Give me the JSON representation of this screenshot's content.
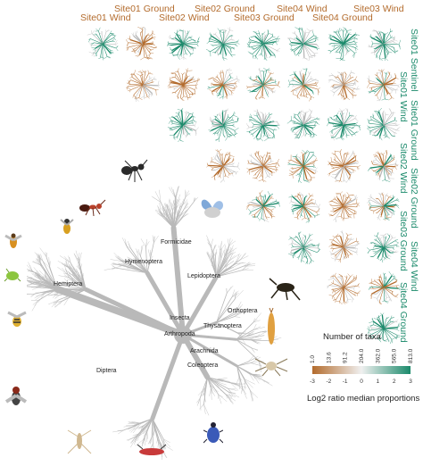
{
  "matrix": {
    "columns": [
      {
        "label": "Site01 Wind",
        "color": "#b36b2c"
      },
      {
        "label": "Site01 Ground",
        "color": "#b36b2c"
      },
      {
        "label": "Site02 Wind",
        "color": "#b36b2c"
      },
      {
        "label": "Site02 Ground",
        "color": "#b36b2c"
      },
      {
        "label": "Site03 Ground",
        "color": "#b36b2c"
      },
      {
        "label": "Site04 Wind",
        "color": "#b36b2c"
      },
      {
        "label": "Site04 Ground",
        "color": "#b36b2c"
      },
      {
        "label": "Site03 Wind",
        "color": "#b36b2c"
      }
    ],
    "rows": [
      {
        "label": "Site01 Sentinel"
      },
      {
        "label": "Site01 Wind"
      },
      {
        "label": "Site01 Ground"
      },
      {
        "label": "Site02 Wind"
      },
      {
        "label": "Site02 Ground"
      },
      {
        "label": "Site03 Ground"
      },
      {
        "label": "Site04 Wind"
      },
      {
        "label": "Site04 Ground"
      }
    ],
    "cells": [
      [
        "green",
        "brown",
        "green",
        "green",
        "green",
        "green",
        "green",
        "green"
      ],
      [
        null,
        "brown",
        "brown",
        "mixed",
        "mixed",
        "mixed",
        "brown",
        "mixed"
      ],
      [
        null,
        null,
        "green",
        "green",
        "green",
        "green",
        "green",
        "green"
      ],
      [
        null,
        null,
        null,
        "brown",
        "brown",
        "mixed",
        "brown",
        "mixed"
      ],
      [
        null,
        null,
        null,
        null,
        "mixed",
        "mixed",
        "brown",
        "mixed"
      ],
      [
        null,
        null,
        null,
        null,
        null,
        "green",
        "brown",
        "green"
      ],
      [
        null,
        null,
        null,
        null,
        null,
        null,
        "brown",
        "mixed"
      ],
      [
        null,
        null,
        null,
        null,
        null,
        null,
        null,
        "green"
      ]
    ]
  },
  "taxa": [
    "Formicidae",
    "Hymenoptera",
    "Lepidoptera",
    "Hemiptera",
    "Orthoptera",
    "Insecta",
    "Thysanoptera",
    "Arthropoda",
    "Arachnida",
    "Diptera",
    "Coleoptera"
  ],
  "legend": {
    "title": "Number of taxa",
    "top_ticks": [
      "1.0",
      "13.6",
      "91.2",
      "204.0",
      "362.0",
      "565.0",
      "813.0"
    ],
    "bottom_ticks": [
      "-3",
      "-2",
      "-1",
      "0",
      "1",
      "2",
      "3"
    ],
    "caption": "Log2 ratio median proportions",
    "color_low": "#b36b2c",
    "color_mid": "#f0f0f0",
    "color_high": "#1b8a6b"
  },
  "colors": {
    "brown": "#b36b2c",
    "green": "#1b8a6b",
    "gray": "#b9b9b9"
  },
  "icons": [
    "ant-icon",
    "red-ant-icon",
    "blue-butterfly-icon",
    "wasp-icon",
    "aphid-icon",
    "hoverfly-icon",
    "housefly-icon",
    "cricket-icon",
    "thrips-icon",
    "spider-icon",
    "mosquito-icon",
    "bug-icon",
    "beetle-icon"
  ]
}
